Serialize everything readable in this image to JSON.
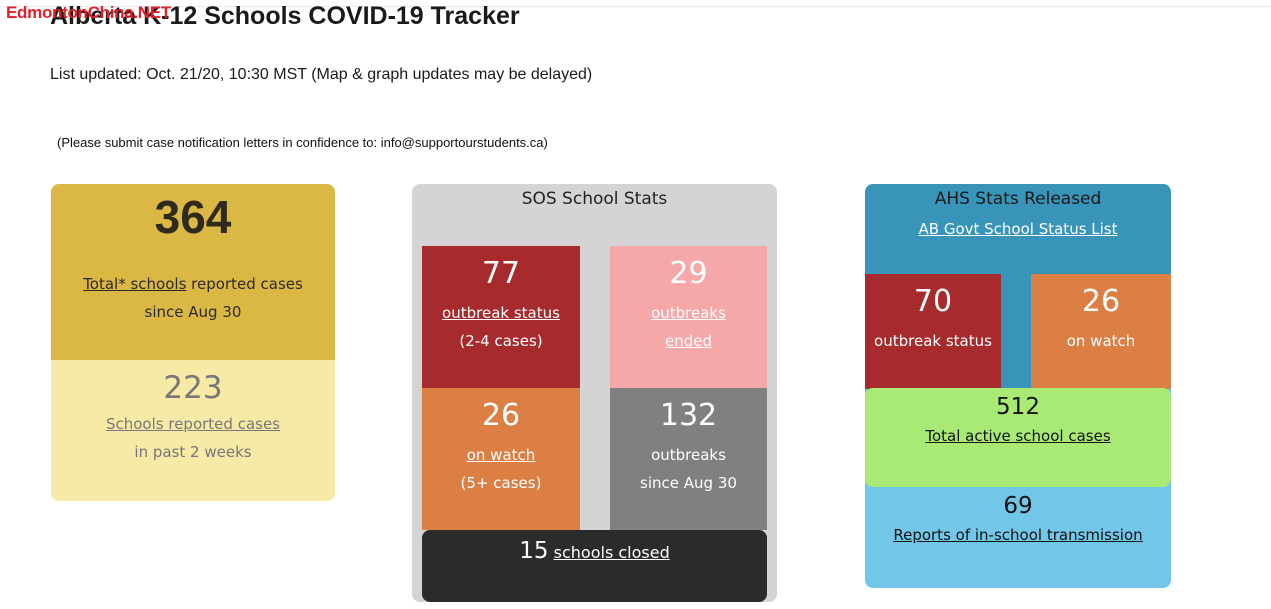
{
  "page": {
    "watermark": "EdmontonChina.NET",
    "title": "Alberta K-12 Schools COVID-19 Tracker",
    "list_updated": "List updated: Oct. 21/20, 10:30 MST (Map & graph updates may be delayed)",
    "submit_note": "(Please submit case notification letters in confidence to: info@supportourstudents.ca)"
  },
  "total_card": {
    "number": "364",
    "link": "Total* schools",
    "line1_rest": " reported cases",
    "line2": "since Aug 30",
    "recent_number": "223",
    "recent_link": "Schools reported cases",
    "recent_line2": "in past 2 weeks"
  },
  "sos_card": {
    "title": "SOS School Stats",
    "outbreak": {
      "number": "77",
      "link": "outbreak status",
      "sub": "(2-4 cases)"
    },
    "ended": {
      "number": "29",
      "link1": "outbreaks",
      "link2": "ended"
    },
    "watch": {
      "number": "26",
      "link": "on watch",
      "sub": "(5+ cases)"
    },
    "since": {
      "number": "132",
      "line1": "outbreaks",
      "line2": "since Aug 30"
    },
    "closed": {
      "number": "15",
      "link": "schools closed"
    }
  },
  "ahs_card": {
    "title": "AHS Stats Released",
    "link": "AB Govt School Status List",
    "outbreak": {
      "number": "70",
      "label": "outbreak status"
    },
    "watch": {
      "number": "26",
      "label": "on watch"
    },
    "active": {
      "number": "512",
      "link": "Total active school cases"
    },
    "transmission": {
      "number": "69",
      "link": "Reports of in-school transmission"
    }
  },
  "colors": {
    "gold": "#dbb843",
    "pale_yellow": "#f7e9a6",
    "panel_gray": "#d4d4d4",
    "outbreak_red": "#a72b2d",
    "ended_pink": "#f6a7a7",
    "watch_orange": "#dc7f45",
    "since_gray": "#808080",
    "closed_black": "#2b2b2b",
    "ahs_blue": "#3894b8",
    "light_blue": "#72c7e8",
    "active_green": "#a8ea74"
  }
}
